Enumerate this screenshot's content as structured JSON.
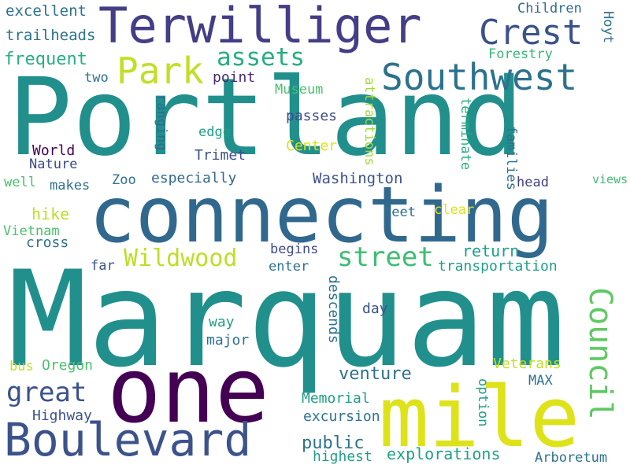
{
  "words": [
    {
      "text": "Portland",
      "color": "#21908d",
      "rotated": false
    },
    {
      "text": "Marquam",
      "color": "#21908d",
      "rotated": false
    },
    {
      "text": "connecting",
      "color": "#31688e",
      "rotated": false
    },
    {
      "text": "one",
      "color": "#440154",
      "rotated": false
    },
    {
      "text": "mile",
      "color": "#dde318",
      "rotated": false
    },
    {
      "text": "Terwilliger",
      "color": "#433e85",
      "rotated": false
    },
    {
      "text": "Boulevard",
      "color": "#3b528b",
      "rotated": false
    },
    {
      "text": "Crest",
      "color": "#3b528b",
      "rotated": false
    },
    {
      "text": "Southwest",
      "color": "#2c728e",
      "rotated": false
    },
    {
      "text": "Park",
      "color": "#c2df23",
      "rotated": false
    },
    {
      "text": "Council",
      "color": "#5ec962",
      "rotated": true
    },
    {
      "text": "Wildwood",
      "color": "#bddf26",
      "rotated": false
    },
    {
      "text": "street",
      "color": "#3fbc73",
      "rotated": false
    },
    {
      "text": "great",
      "color": "#3b528b",
      "rotated": false
    },
    {
      "text": "assets",
      "color": "#28ae80",
      "rotated": false
    },
    {
      "text": "excellent",
      "color": "#2c728e",
      "rotated": false
    },
    {
      "text": "trailheads",
      "color": "#2c728e",
      "rotated": false
    },
    {
      "text": "frequent",
      "color": "#29af7f",
      "rotated": false
    },
    {
      "text": "two",
      "color": "#2c728e",
      "rotated": false
    },
    {
      "text": "point",
      "color": "#482878",
      "rotated": false
    },
    {
      "text": "Children",
      "color": "#31688e",
      "rotated": false
    },
    {
      "text": "Hoyt",
      "color": "#2c728e",
      "rotated": true
    },
    {
      "text": "Forestry",
      "color": "#35b779",
      "rotated": false
    },
    {
      "text": "Museum",
      "color": "#4ac16d",
      "rotated": false
    },
    {
      "text": "ranging",
      "color": "#31688e",
      "rotated": true
    },
    {
      "text": "passes",
      "color": "#3e4a89",
      "rotated": false
    },
    {
      "text": "attractions",
      "color": "#a0da39",
      "rotated": true
    },
    {
      "text": "terminate",
      "color": "#29af7f",
      "rotated": true
    },
    {
      "text": "families",
      "color": "#2c728e",
      "rotated": true
    },
    {
      "text": "edge",
      "color": "#1f9f88",
      "rotated": false
    },
    {
      "text": "Center",
      "color": "#dde318",
      "rotated": false
    },
    {
      "text": "World",
      "color": "#440154",
      "rotated": false
    },
    {
      "text": "Nature",
      "color": "#3e4a89",
      "rotated": false
    },
    {
      "text": "Trimet",
      "color": "#3b528b",
      "rotated": false
    },
    {
      "text": "well",
      "color": "#4ac16d",
      "rotated": false
    },
    {
      "text": "makes",
      "color": "#2c728e",
      "rotated": false
    },
    {
      "text": "Zoo",
      "color": "#2c728e",
      "rotated": false
    },
    {
      "text": "especially",
      "color": "#31688e",
      "rotated": false
    },
    {
      "text": "Washington",
      "color": "#3b528b",
      "rotated": false
    },
    {
      "text": "head",
      "color": "#433e85",
      "rotated": false
    },
    {
      "text": "views",
      "color": "#3fbc73",
      "rotated": false
    },
    {
      "text": "hike",
      "color": "#bddf26",
      "rotated": false
    },
    {
      "text": "feet",
      "color": "#2c728e",
      "rotated": false
    },
    {
      "text": "clear",
      "color": "#dde318",
      "rotated": false
    },
    {
      "text": "Vietnam",
      "color": "#4ac16d",
      "rotated": false
    },
    {
      "text": "cross",
      "color": "#2c728e",
      "rotated": false
    },
    {
      "text": "far",
      "color": "#3b528b",
      "rotated": false
    },
    {
      "text": "begins",
      "color": "#3e4a89",
      "rotated": false
    },
    {
      "text": "enter",
      "color": "#2c728e",
      "rotated": false
    },
    {
      "text": "return",
      "color": "#1f9f88",
      "rotated": false
    },
    {
      "text": "transportation",
      "color": "#1f9f88",
      "rotated": false
    },
    {
      "text": "descends",
      "color": "#2c728e",
      "rotated": true
    },
    {
      "text": "day",
      "color": "#3b528b",
      "rotated": false
    },
    {
      "text": "way",
      "color": "#1f9f88",
      "rotated": false
    },
    {
      "text": "major",
      "color": "#2c728e",
      "rotated": false
    },
    {
      "text": "bus",
      "color": "#c2df23",
      "rotated": false
    },
    {
      "text": "Oregon",
      "color": "#4ac16d",
      "rotated": false
    },
    {
      "text": "Veterans",
      "color": "#c2df23",
      "rotated": false
    },
    {
      "text": "venture",
      "color": "#2c728e",
      "rotated": false
    },
    {
      "text": "MAX",
      "color": "#2c728e",
      "rotated": false
    },
    {
      "text": "option",
      "color": "#1f9f88",
      "rotated": true
    },
    {
      "text": "Memorial",
      "color": "#1f9f88",
      "rotated": false
    },
    {
      "text": "Highway",
      "color": "#3b528b",
      "rotated": false
    },
    {
      "text": "excursion",
      "color": "#2c728e",
      "rotated": false
    },
    {
      "text": "public",
      "color": "#2c728e",
      "rotated": false
    },
    {
      "text": "explorations",
      "color": "#1f9f88",
      "rotated": false
    },
    {
      "text": "highest",
      "color": "#1f9f88",
      "rotated": false
    },
    {
      "text": "Arboretum",
      "color": "#2c728e",
      "rotated": false
    }
  ]
}
